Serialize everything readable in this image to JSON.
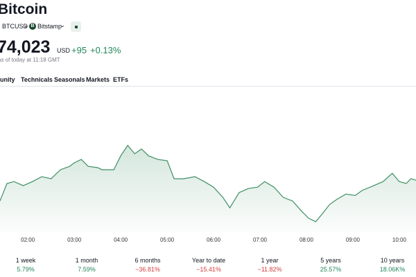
{
  "header": {
    "title": "Bitcoin",
    "symbol": "BTCUSD",
    "exchange_icon": "B",
    "exchange": "Bitstamp",
    "price": "74,023",
    "currency": "USD",
    "change": "+95",
    "change_percent": "+0.13%",
    "as_of": "as of today at 11:18 GMT"
  },
  "tabs": [
    "Community",
    "Technicals",
    "Seasonals",
    "Markets",
    "ETFs"
  ],
  "chart_data": {
    "type": "area",
    "color": "#3d8f62",
    "x": [
      1.4,
      1.55,
      1.7,
      1.9,
      2.1,
      2.3,
      2.5,
      2.7,
      2.9,
      3.0,
      3.15,
      3.3,
      3.5,
      3.6,
      3.85,
      4.0,
      4.15,
      4.3,
      4.45,
      4.6,
      4.8,
      5.0,
      5.15,
      5.35,
      5.6,
      5.8,
      6.0,
      6.2,
      6.35,
      6.55,
      6.75,
      6.95,
      7.1,
      7.3,
      7.5,
      7.7,
      7.9,
      8.05,
      8.2,
      8.35,
      8.5,
      8.65,
      8.85,
      9.05,
      9.2,
      9.45,
      9.65,
      9.85,
      10.0,
      10.15,
      10.25,
      10.36
    ],
    "values": [
      73775,
      73873,
      73884,
      73861,
      73884,
      73912,
      73900,
      73951,
      73970,
      73990,
      74009,
      73970,
      73963,
      73951,
      73951,
      74029,
      74088,
      74041,
      74068,
      74029,
      74009,
      74002,
      73900,
      73900,
      73912,
      73884,
      73853,
      73795,
      73736,
      73822,
      73845,
      73853,
      73884,
      73853,
      73795,
      73775,
      73716,
      73677,
      73658,
      73705,
      73755,
      73783,
      73814,
      73806,
      73834,
      73861,
      73884,
      73931,
      73884,
      73873,
      73900,
      73892
    ],
    "xlim": [
      1.4,
      10.36
    ],
    "ylim": [
      73600,
      74400
    ],
    "xticks": [
      {
        "value": 2,
        "label": "02:00"
      },
      {
        "value": 3,
        "label": "03:00"
      },
      {
        "value": 4,
        "label": "04:00"
      },
      {
        "value": 5,
        "label": "05:00"
      },
      {
        "value": 6,
        "label": "06:00"
      },
      {
        "value": 7,
        "label": "07:00"
      },
      {
        "value": 8,
        "label": "08:00"
      },
      {
        "value": 9,
        "label": "09:00"
      },
      {
        "value": 10,
        "label": "10:00"
      }
    ]
  },
  "performance": [
    {
      "label": "1 week",
      "value": "5.79%"
    },
    {
      "label": "1 month",
      "value": "7.59%"
    },
    {
      "label": "6 months",
      "value": "−36.81%"
    },
    {
      "label": "Year to date",
      "value": "−15.41%"
    },
    {
      "label": "1 year",
      "value": "−11.82%"
    },
    {
      "label": "5 years",
      "value": "25.57%"
    },
    {
      "label": "10 years",
      "value": "18.06K%"
    }
  ]
}
